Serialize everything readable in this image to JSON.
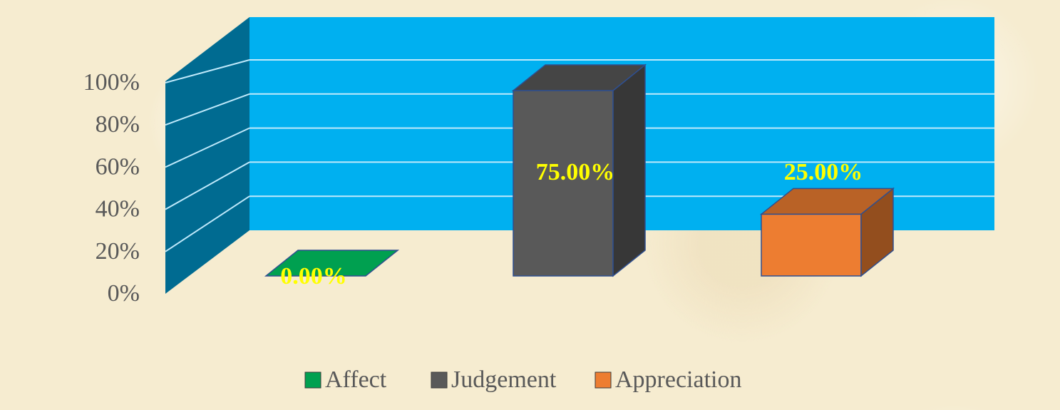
{
  "chart_data": {
    "type": "bar",
    "style": "3d-column",
    "categories": [
      "Affect",
      "Judgement",
      "Appreciation"
    ],
    "values": [
      0.0,
      75.0,
      25.0
    ],
    "data_labels": [
      "0.00%",
      "75.00%",
      "25.00%"
    ],
    "ytick_labels": [
      "0%",
      "20%",
      "40%",
      "60%",
      "80%",
      "100%"
    ],
    "ylim": [
      0,
      100
    ],
    "grid": true,
    "legend": {
      "placement": "bottom",
      "entries": [
        "Affect",
        "Judgement",
        "Appreciation"
      ]
    },
    "title": "",
    "xlabel": "",
    "ylabel": "",
    "colors": {
      "Affect": "#00a050",
      "Judgement": "#595959",
      "Appreciation": "#ed7d31",
      "back_wall": "#00b0f0",
      "side_wall": "#006b91",
      "data_label": "#ffff00",
      "axis_text": "#595959"
    }
  }
}
